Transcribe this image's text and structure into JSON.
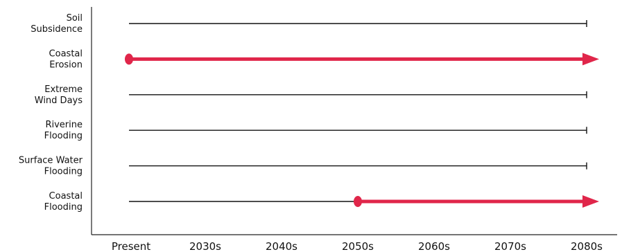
{
  "chart_data": {
    "type": "timeline",
    "title": "",
    "xlabel": "",
    "ylabel": "",
    "x_ticks": [
      "Present",
      "2030s",
      "2040s",
      "2050s",
      "2060s",
      "2070s",
      "2080s"
    ],
    "rows": [
      {
        "label_lines": [
          "Soil",
          "Subsidence"
        ],
        "highlight_start": null
      },
      {
        "label_lines": [
          "Coastal",
          "Erosion"
        ],
        "highlight_start": "Present"
      },
      {
        "label_lines": [
          "Extreme",
          "Wind Days"
        ],
        "highlight_start": null
      },
      {
        "label_lines": [
          "Riverine",
          "Flooding"
        ],
        "highlight_start": null
      },
      {
        "label_lines": [
          "Surface Water",
          "Flooding"
        ],
        "highlight_start": null
      },
      {
        "label_lines": [
          "Coastal",
          "Flooding"
        ],
        "highlight_start": "2050s"
      }
    ],
    "colors": {
      "highlight": "#e0264a",
      "baseline": "#111111",
      "axis": "#222222"
    }
  }
}
